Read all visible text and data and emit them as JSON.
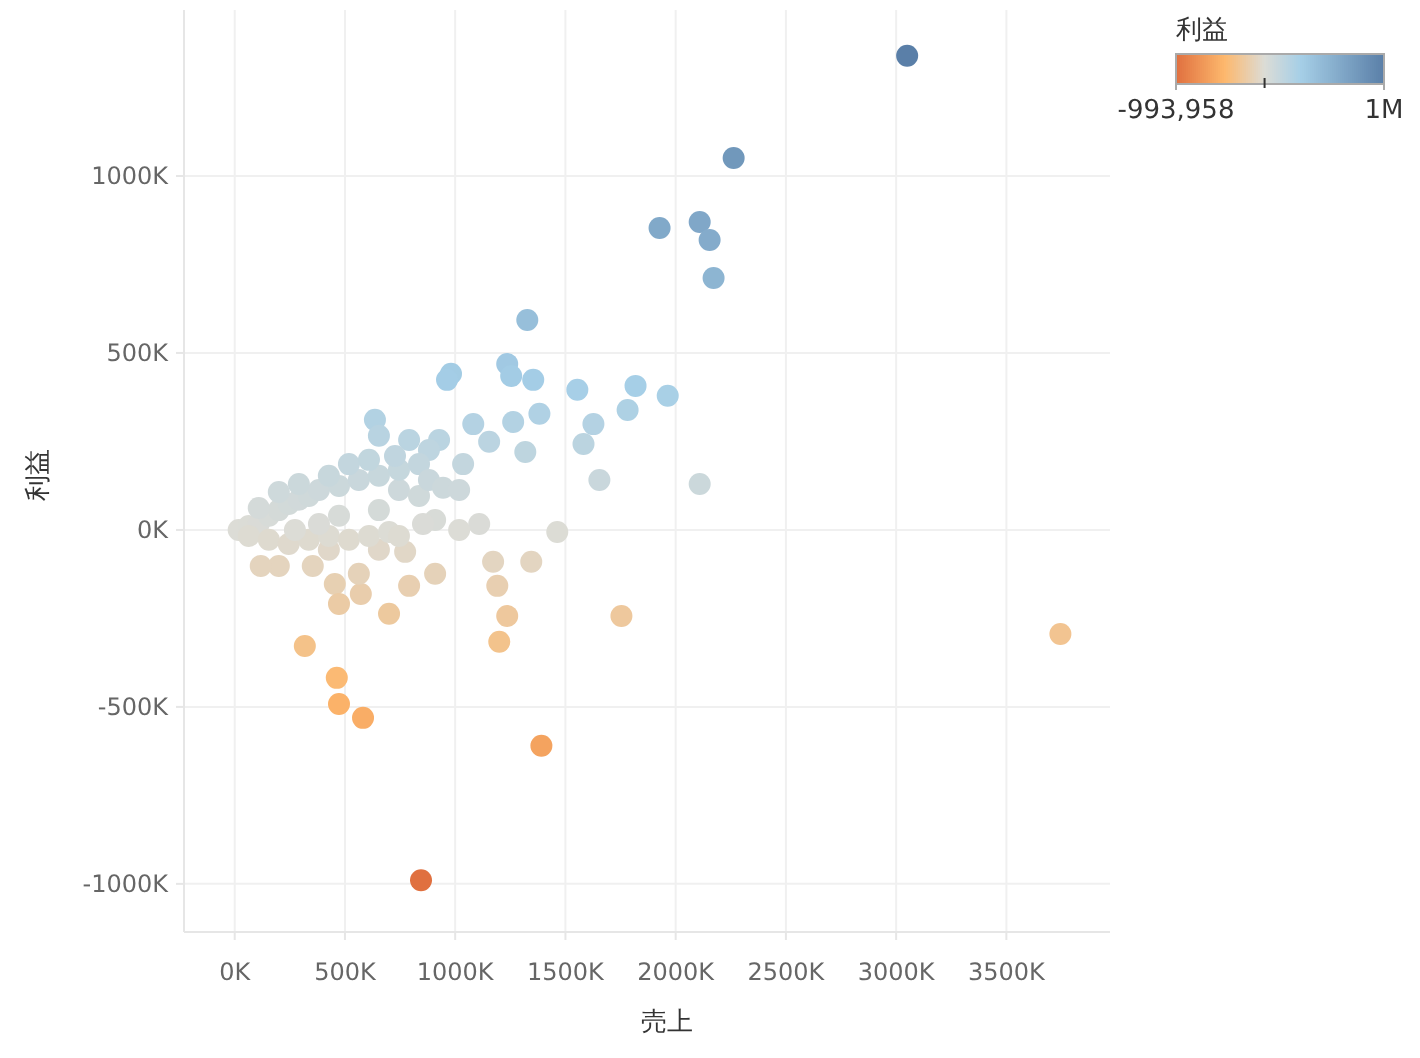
{
  "chart_data": {
    "type": "scatter",
    "xlabel": "売上",
    "ylabel": "利益",
    "clabel": "利益",
    "xlim": [
      -230000,
      3970000
    ],
    "ylim": [
      -1136000,
      1469000
    ],
    "xticks": [
      {
        "value": 0,
        "label": "0K"
      },
      {
        "value": 500000,
        "label": "500K"
      },
      {
        "value": 1000000,
        "label": "1000K"
      },
      {
        "value": 1500000,
        "label": "1500K"
      },
      {
        "value": 2000000,
        "label": "2000K"
      },
      {
        "value": 2500000,
        "label": "2500K"
      },
      {
        "value": 3000000,
        "label": "3000K"
      },
      {
        "value": 3500000,
        "label": "3500K"
      }
    ],
    "yticks": [
      {
        "value": -1000000,
        "label": "-1000K"
      },
      {
        "value": -500000,
        "label": "-500K"
      },
      {
        "value": 0,
        "label": "0K"
      },
      {
        "value": 500000,
        "label": "500K"
      },
      {
        "value": 1000000,
        "label": "1000K"
      }
    ],
    "clim": [
      -993958,
      1340000
    ],
    "cticks": [
      {
        "value": -993958,
        "label": "-993,958"
      },
      {
        "value": 1340000,
        "label": "1M"
      }
    ],
    "grid": true,
    "marker": "circle",
    "x": [
      3050000,
      2263000,
      1927000,
      2109000,
      2154000,
      2172000,
      1327000,
      3745000,
      2109000,
      1964000,
      1818000,
      1782000,
      1554000,
      1627000,
      1582000,
      1654000,
      1463000,
      1236000,
      1354000,
      1254000,
      981000,
      963000,
      1382000,
      1263000,
      1318000,
      1154000,
      1036000,
      927000,
      1082000,
      636000,
      654000,
      881000,
      745000,
      909000,
      1109000,
      1018000,
      854000,
      845000,
      1391000,
      582000,
      473000,
      463000,
      318000,
      1754000,
      1200000,
      1236000,
      1191000,
      1172000,
      1345000,
      909000,
      791000,
      700000,
      572000,
      454000,
      473000,
      563000,
      354000,
      200000,
      118000,
      773000,
      654000,
      427000,
      18000,
      64000,
      109000,
      155000,
      200000,
      245000,
      291000,
      336000,
      382000,
      473000,
      563000,
      654000,
      745000,
      836000,
      518000,
      609000,
      791000,
      727000,
      427000,
      291000,
      200000,
      109000,
      64000,
      155000,
      245000,
      336000,
      427000,
      518000,
      609000,
      700000,
      273000,
      473000,
      654000,
      836000,
      382000,
      745000,
      881000,
      945000,
      1018000
    ],
    "values": [
      1340000,
      1051000,
      853000,
      870000,
      819000,
      712000,
      593000,
      -294000,
      130000,
      379000,
      407000,
      339000,
      396000,
      299000,
      243000,
      141000,
      -6000,
      469000,
      424000,
      435000,
      441000,
      424000,
      328000,
      305000,
      220000,
      249000,
      186000,
      254000,
      299000,
      311000,
      266000,
      226000,
      113000,
      28000,
      17000,
      0,
      17000,
      -990000,
      -610000,
      -531000,
      -492000,
      -418000,
      -328000,
      -243000,
      -316000,
      -243000,
      -158000,
      -90000,
      -90000,
      -124000,
      -158000,
      -237000,
      -181000,
      -153000,
      -209000,
      -124000,
      -102000,
      -102000,
      -102000,
      -62000,
      -56000,
      -56000,
      0,
      11000,
      17000,
      40000,
      56000,
      73000,
      85000,
      96000,
      113000,
      124000,
      141000,
      153000,
      170000,
      186000,
      186000,
      198000,
      254000,
      209000,
      153000,
      130000,
      107000,
      62000,
      -17000,
      -28000,
      -40000,
      -28000,
      -17000,
      -28000,
      -17000,
      -6000,
      0,
      40000,
      56000,
      96000,
      17000,
      -17000,
      141000,
      119000,
      113000
    ],
    "cvalues": [
      1340000,
      1051000,
      853000,
      870000,
      819000,
      712000,
      593000,
      -294000,
      130000,
      379000,
      407000,
      339000,
      396000,
      299000,
      243000,
      141000,
      -6000,
      469000,
      424000,
      435000,
      441000,
      424000,
      328000,
      305000,
      220000,
      249000,
      186000,
      254000,
      299000,
      311000,
      266000,
      226000,
      113000,
      28000,
      17000,
      0,
      17000,
      -993958,
      -610000,
      -531000,
      -492000,
      -418000,
      -328000,
      -243000,
      -316000,
      -243000,
      -158000,
      -90000,
      -90000,
      -124000,
      -158000,
      -237000,
      -181000,
      -153000,
      -209000,
      -124000,
      -102000,
      -102000,
      -102000,
      -62000,
      -56000,
      -56000,
      0,
      11000,
      17000,
      40000,
      56000,
      73000,
      85000,
      96000,
      113000,
      124000,
      141000,
      153000,
      170000,
      186000,
      186000,
      198000,
      254000,
      209000,
      153000,
      130000,
      107000,
      62000,
      -17000,
      -28000,
      -40000,
      -28000,
      -17000,
      -28000,
      -17000,
      -6000,
      0,
      40000,
      56000,
      96000,
      17000,
      -17000,
      141000,
      119000,
      113000
    ]
  }
}
